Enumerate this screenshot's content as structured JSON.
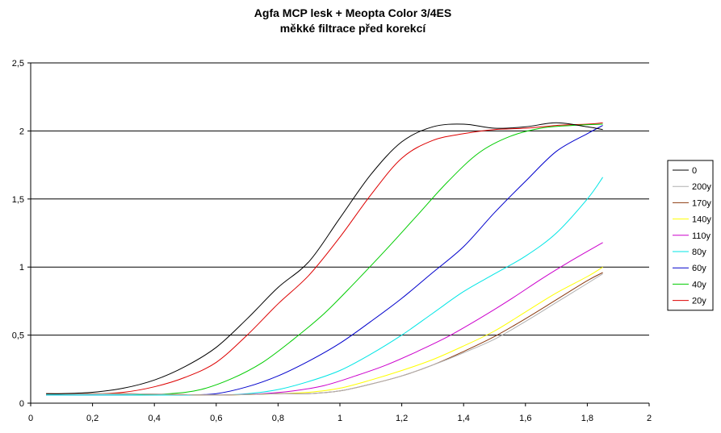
{
  "chart_data": {
    "type": "line",
    "title": "Agfa MCP lesk + Meopta Color 3/4ES",
    "subtitle": "měkké filtrace před korekcí",
    "xlim": [
      0,
      2
    ],
    "ylim": [
      0,
      2.5
    ],
    "x_ticks": [
      "0",
      "0,2",
      "0,4",
      "0,6",
      "0,8",
      "1",
      "1,2",
      "1,4",
      "1,6",
      "1,8",
      "2"
    ],
    "y_ticks": [
      "0",
      "0,5",
      "1",
      "1,5",
      "2",
      "2,5"
    ],
    "grid": "horizontal major",
    "legend_position": "right",
    "series": [
      {
        "name": "0",
        "color": "#000000",
        "points": [
          [
            0.05,
            0.07
          ],
          [
            0.1,
            0.07
          ],
          [
            0.2,
            0.08
          ],
          [
            0.3,
            0.11
          ],
          [
            0.4,
            0.17
          ],
          [
            0.5,
            0.27
          ],
          [
            0.6,
            0.41
          ],
          [
            0.7,
            0.62
          ],
          [
            0.8,
            0.85
          ],
          [
            0.9,
            1.04
          ],
          [
            1.0,
            1.36
          ],
          [
            1.1,
            1.68
          ],
          [
            1.2,
            1.92
          ],
          [
            1.3,
            2.03
          ],
          [
            1.4,
            2.05
          ],
          [
            1.5,
            2.02
          ],
          [
            1.6,
            2.03
          ],
          [
            1.7,
            2.06
          ],
          [
            1.8,
            2.03
          ],
          [
            1.85,
            2.01
          ]
        ]
      },
      {
        "name": "200y",
        "color": "#b0b0b0",
        "points": [
          [
            0.05,
            0.07
          ],
          [
            0.3,
            0.07
          ],
          [
            0.6,
            0.06
          ],
          [
            0.8,
            0.07
          ],
          [
            0.9,
            0.07
          ],
          [
            1.0,
            0.09
          ],
          [
            1.1,
            0.14
          ],
          [
            1.2,
            0.2
          ],
          [
            1.3,
            0.28
          ],
          [
            1.4,
            0.37
          ],
          [
            1.5,
            0.47
          ],
          [
            1.6,
            0.6
          ],
          [
            1.7,
            0.74
          ],
          [
            1.8,
            0.88
          ],
          [
            1.85,
            0.95
          ]
        ]
      },
      {
        "name": "170y",
        "color": "#8b3a0e",
        "points": [
          [
            0.05,
            0.07
          ],
          [
            0.3,
            0.07
          ],
          [
            0.6,
            0.06
          ],
          [
            0.8,
            0.07
          ],
          [
            0.9,
            0.07
          ],
          [
            1.0,
            0.09
          ],
          [
            1.1,
            0.14
          ],
          [
            1.2,
            0.2
          ],
          [
            1.3,
            0.28
          ],
          [
            1.4,
            0.38
          ],
          [
            1.5,
            0.49
          ],
          [
            1.6,
            0.62
          ],
          [
            1.7,
            0.76
          ],
          [
            1.8,
            0.9
          ],
          [
            1.85,
            0.96
          ]
        ]
      },
      {
        "name": "140y",
        "color": "#ffff00",
        "points": [
          [
            0.05,
            0.07
          ],
          [
            0.3,
            0.07
          ],
          [
            0.6,
            0.06
          ],
          [
            0.8,
            0.07
          ],
          [
            0.9,
            0.08
          ],
          [
            1.0,
            0.11
          ],
          [
            1.1,
            0.17
          ],
          [
            1.2,
            0.24
          ],
          [
            1.3,
            0.32
          ],
          [
            1.4,
            0.42
          ],
          [
            1.5,
            0.53
          ],
          [
            1.6,
            0.67
          ],
          [
            1.7,
            0.81
          ],
          [
            1.8,
            0.93
          ],
          [
            1.85,
            1.0
          ]
        ]
      },
      {
        "name": "110y",
        "color": "#cc00cc",
        "points": [
          [
            0.05,
            0.07
          ],
          [
            0.3,
            0.07
          ],
          [
            0.6,
            0.06
          ],
          [
            0.75,
            0.07
          ],
          [
            0.85,
            0.09
          ],
          [
            0.95,
            0.13
          ],
          [
            1.05,
            0.2
          ],
          [
            1.15,
            0.28
          ],
          [
            1.25,
            0.38
          ],
          [
            1.35,
            0.49
          ],
          [
            1.45,
            0.62
          ],
          [
            1.55,
            0.76
          ],
          [
            1.65,
            0.91
          ],
          [
            1.75,
            1.05
          ],
          [
            1.85,
            1.18
          ]
        ]
      },
      {
        "name": "80y",
        "color": "#00e5e5",
        "points": [
          [
            0.05,
            0.06
          ],
          [
            0.3,
            0.06
          ],
          [
            0.6,
            0.06
          ],
          [
            0.7,
            0.07
          ],
          [
            0.8,
            0.1
          ],
          [
            0.9,
            0.16
          ],
          [
            1.0,
            0.24
          ],
          [
            1.1,
            0.36
          ],
          [
            1.2,
            0.5
          ],
          [
            1.3,
            0.66
          ],
          [
            1.4,
            0.82
          ],
          [
            1.5,
            0.95
          ],
          [
            1.6,
            1.08
          ],
          [
            1.7,
            1.25
          ],
          [
            1.8,
            1.5
          ],
          [
            1.85,
            1.66
          ]
        ]
      },
      {
        "name": "60y",
        "color": "#0000cc",
        "points": [
          [
            0.05,
            0.06
          ],
          [
            0.3,
            0.06
          ],
          [
            0.5,
            0.06
          ],
          [
            0.6,
            0.07
          ],
          [
            0.7,
            0.12
          ],
          [
            0.8,
            0.2
          ],
          [
            0.9,
            0.31
          ],
          [
            1.0,
            0.44
          ],
          [
            1.1,
            0.6
          ],
          [
            1.2,
            0.77
          ],
          [
            1.3,
            0.96
          ],
          [
            1.4,
            1.15
          ],
          [
            1.5,
            1.4
          ],
          [
            1.6,
            1.63
          ],
          [
            1.7,
            1.85
          ],
          [
            1.8,
            1.98
          ],
          [
            1.85,
            2.04
          ]
        ]
      },
      {
        "name": "40y",
        "color": "#00cc00",
        "points": [
          [
            0.05,
            0.06
          ],
          [
            0.3,
            0.06
          ],
          [
            0.45,
            0.07
          ],
          [
            0.55,
            0.1
          ],
          [
            0.65,
            0.18
          ],
          [
            0.75,
            0.3
          ],
          [
            0.85,
            0.47
          ],
          [
            0.95,
            0.66
          ],
          [
            1.05,
            0.89
          ],
          [
            1.15,
            1.13
          ],
          [
            1.25,
            1.38
          ],
          [
            1.35,
            1.63
          ],
          [
            1.45,
            1.84
          ],
          [
            1.55,
            1.96
          ],
          [
            1.65,
            2.02
          ],
          [
            1.75,
            2.04
          ],
          [
            1.85,
            2.05
          ]
        ]
      },
      {
        "name": "20y",
        "color": "#dd0000",
        "points": [
          [
            0.05,
            0.07
          ],
          [
            0.2,
            0.07
          ],
          [
            0.3,
            0.08
          ],
          [
            0.4,
            0.12
          ],
          [
            0.5,
            0.19
          ],
          [
            0.6,
            0.3
          ],
          [
            0.7,
            0.5
          ],
          [
            0.8,
            0.73
          ],
          [
            0.9,
            0.94
          ],
          [
            1.0,
            1.22
          ],
          [
            1.1,
            1.53
          ],
          [
            1.2,
            1.8
          ],
          [
            1.3,
            1.93
          ],
          [
            1.4,
            1.98
          ],
          [
            1.5,
            2.01
          ],
          [
            1.6,
            2.02
          ],
          [
            1.7,
            2.04
          ],
          [
            1.8,
            2.05
          ],
          [
            1.85,
            2.06
          ]
        ]
      }
    ]
  }
}
